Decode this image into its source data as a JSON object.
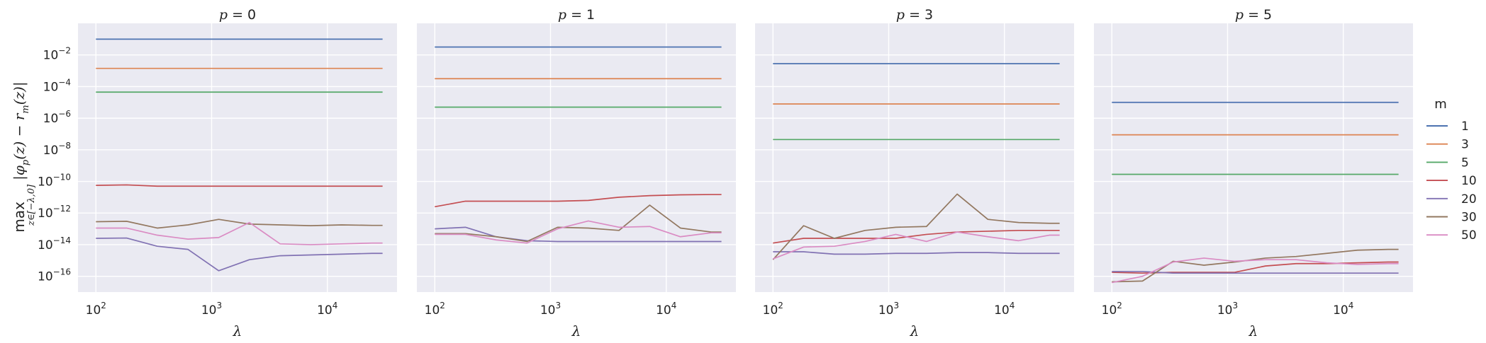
{
  "chart_data": {
    "type": "line",
    "ylabel": "max_{z∈[−λ,0]} |φ_p(z) − r_m(z)|",
    "ylabel_parts": {
      "main": "max",
      "sub": "z∈[−λ,0]",
      "expr": "|φ",
      "expr_p": "p",
      "expr_mid": "(z) − r",
      "expr_m": "m",
      "expr_end": "(z)|"
    },
    "xlabel": "λ",
    "xscale": "log",
    "yscale": "log",
    "xlim": [
      70,
      40000
    ],
    "ylim": [
      1e-17,
      1
    ],
    "xtick_exponents": [
      2,
      3,
      4
    ],
    "ytick_exponents": [
      -16,
      -14,
      -12,
      -10,
      -8,
      -6,
      -4,
      -2
    ],
    "tick_base": "10",
    "grid": true,
    "legend": {
      "title": "m",
      "placement": "right",
      "entries": [
        "1",
        "3",
        "5",
        "10",
        "20",
        "30",
        "50"
      ]
    },
    "colors": {
      "1": "#4c72b0",
      "3": "#dd8452",
      "5": "#55a868",
      "10": "#c44e52",
      "20": "#8172b3",
      "30": "#937860",
      "50": "#da8bc3"
    },
    "x": [
      100,
      184,
      339,
      625,
      1151,
      2121,
      3907,
      7197,
      13257,
      24421,
      30000
    ],
    "panels": [
      {
        "title_var": "p",
        "title_value": " = 0",
        "series": [
          {
            "m": "1",
            "log10": [
              -1.0,
              -1.0,
              -1.0,
              -1.0,
              -1.0,
              -1.0,
              -1.0,
              -1.0,
              -1.0,
              -1.0,
              -1.0
            ]
          },
          {
            "m": "3",
            "log10": [
              -2.85,
              -2.85,
              -2.85,
              -2.85,
              -2.85,
              -2.85,
              -2.85,
              -2.85,
              -2.85,
              -2.85,
              -2.85
            ]
          },
          {
            "m": "5",
            "log10": [
              -4.35,
              -4.35,
              -4.35,
              -4.35,
              -4.35,
              -4.35,
              -4.35,
              -4.35,
              -4.35,
              -4.35,
              -4.35
            ]
          },
          {
            "m": "10",
            "log10": [
              -10.25,
              -10.22,
              -10.3,
              -10.3,
              -10.3,
              -10.3,
              -10.3,
              -10.3,
              -10.3,
              -10.3,
              -10.3
            ]
          },
          {
            "m": "20",
            "log10": [
              -13.6,
              -13.58,
              -14.1,
              -14.3,
              -15.65,
              -14.95,
              -14.7,
              -14.65,
              -14.6,
              -14.55,
              -14.55
            ]
          },
          {
            "m": "30",
            "log10": [
              -12.55,
              -12.52,
              -12.95,
              -12.75,
              -12.4,
              -12.7,
              -12.75,
              -12.8,
              -12.75,
              -12.78,
              -12.78
            ]
          },
          {
            "m": "50",
            "log10": [
              -12.95,
              -12.95,
              -13.4,
              -13.65,
              -13.55,
              -12.6,
              -13.95,
              -14.0,
              -13.95,
              -13.9,
              -13.9
            ]
          }
        ]
      },
      {
        "title_var": "p",
        "title_value": " = 1",
        "series": [
          {
            "m": "1",
            "log10": [
              -1.5,
              -1.5,
              -1.5,
              -1.5,
              -1.5,
              -1.5,
              -1.5,
              -1.5,
              -1.5,
              -1.5,
              -1.5
            ]
          },
          {
            "m": "3",
            "log10": [
              -3.5,
              -3.5,
              -3.5,
              -3.5,
              -3.5,
              -3.5,
              -3.5,
              -3.5,
              -3.5,
              -3.5,
              -3.5
            ]
          },
          {
            "m": "5",
            "log10": [
              -5.3,
              -5.3,
              -5.3,
              -5.3,
              -5.3,
              -5.3,
              -5.3,
              -5.3,
              -5.3,
              -5.3,
              -5.3
            ]
          },
          {
            "m": "10",
            "log10": [
              -11.6,
              -11.25,
              -11.25,
              -11.25,
              -11.25,
              -11.2,
              -11.0,
              -10.9,
              -10.85,
              -10.83,
              -10.83
            ]
          },
          {
            "m": "20",
            "log10": [
              -13.0,
              -12.9,
              -13.5,
              -13.75,
              -13.8,
              -13.8,
              -13.8,
              -13.8,
              -13.8,
              -13.8,
              -13.8
            ]
          },
          {
            "m": "30",
            "log10": [
              -13.3,
              -13.3,
              -13.5,
              -13.8,
              -12.9,
              -12.95,
              -13.1,
              -11.5,
              -12.95,
              -13.2,
              -13.2
            ]
          },
          {
            "m": "50",
            "log10": [
              -13.35,
              -13.35,
              -13.7,
              -13.9,
              -13.0,
              -12.5,
              -12.9,
              -12.85,
              -13.5,
              -13.25,
              -13.25
            ]
          }
        ]
      },
      {
        "title_var": "p",
        "title_value": " = 3",
        "series": [
          {
            "m": "1",
            "log10": [
              -2.55,
              -2.55,
              -2.55,
              -2.55,
              -2.55,
              -2.55,
              -2.55,
              -2.55,
              -2.55,
              -2.55,
              -2.55
            ]
          },
          {
            "m": "3",
            "log10": [
              -5.1,
              -5.1,
              -5.1,
              -5.1,
              -5.1,
              -5.1,
              -5.1,
              -5.1,
              -5.1,
              -5.1,
              -5.1
            ]
          },
          {
            "m": "5",
            "log10": [
              -7.35,
              -7.35,
              -7.35,
              -7.35,
              -7.35,
              -7.35,
              -7.35,
              -7.35,
              -7.35,
              -7.35,
              -7.35
            ]
          },
          {
            "m": "10",
            "log10": [
              -13.9,
              -13.6,
              -13.6,
              -13.6,
              -13.6,
              -13.35,
              -13.2,
              -13.15,
              -13.1,
              -13.1,
              -13.1
            ]
          },
          {
            "m": "20",
            "log10": [
              -14.45,
              -14.45,
              -14.6,
              -14.6,
              -14.55,
              -14.55,
              -14.5,
              -14.5,
              -14.55,
              -14.55,
              -14.55
            ]
          },
          {
            "m": "30",
            "log10": [
              -14.95,
              -12.8,
              -13.6,
              -13.1,
              -12.9,
              -12.85,
              -10.8,
              -12.4,
              -12.6,
              -12.65,
              -12.65
            ]
          },
          {
            "m": "50",
            "log10": [
              -14.9,
              -14.15,
              -14.1,
              -13.8,
              -13.35,
              -13.8,
              -13.2,
              -13.5,
              -13.75,
              -13.4,
              -13.4
            ]
          }
        ]
      },
      {
        "title_var": "p",
        "title_value": " = 5",
        "series": [
          {
            "m": "1",
            "log10": [
              -5.0,
              -5.0,
              -5.0,
              -5.0,
              -5.0,
              -5.0,
              -5.0,
              -5.0,
              -5.0,
              -5.0,
              -5.0
            ]
          },
          {
            "m": "3",
            "log10": [
              -7.05,
              -7.05,
              -7.05,
              -7.05,
              -7.05,
              -7.05,
              -7.05,
              -7.05,
              -7.05,
              -7.05,
              -7.05
            ]
          },
          {
            "m": "5",
            "log10": [
              -9.55,
              -9.55,
              -9.55,
              -9.55,
              -9.55,
              -9.55,
              -9.55,
              -9.55,
              -9.55,
              -9.55,
              -9.55
            ]
          },
          {
            "m": "10",
            "log10": [
              -15.75,
              -15.8,
              -15.75,
              -15.75,
              -15.75,
              -15.35,
              -15.2,
              -15.2,
              -15.15,
              -15.1,
              -15.1
            ]
          },
          {
            "m": "20",
            "log10": [
              -15.7,
              -15.7,
              -15.8,
              -15.8,
              -15.8,
              -15.8,
              -15.8,
              -15.8,
              -15.8,
              -15.8,
              -15.8
            ]
          },
          {
            "m": "30",
            "log10": [
              -16.35,
              -16.3,
              -15.05,
              -15.3,
              -15.1,
              -14.85,
              -14.75,
              -14.55,
              -14.35,
              -14.3,
              -14.3
            ]
          },
          {
            "m": "50",
            "log10": [
              -16.4,
              -16.0,
              -15.1,
              -14.85,
              -15.05,
              -14.95,
              -14.95,
              -15.15,
              -15.25,
              -15.2,
              -15.2
            ]
          }
        ]
      }
    ]
  }
}
